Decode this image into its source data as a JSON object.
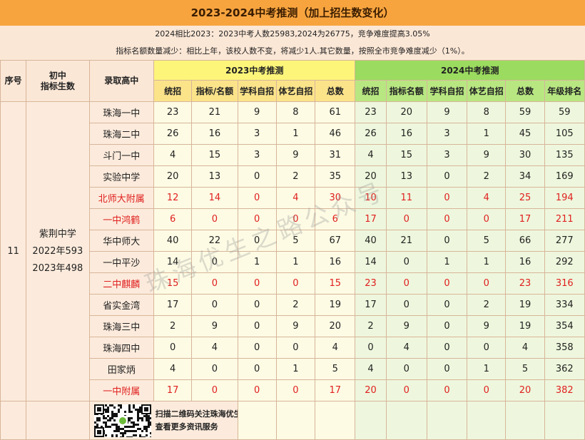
{
  "title": "2023-2024中考推测（加上招生数变化）",
  "notes": [
    "2024相比2023：2023中考人数25983,2024为26775，竞争难度提高3.05%",
    "指标名额数量减少：相比上年，该校人数不变，将减少1人.其它数量，按照全市竞争难度减少（1%）。"
  ],
  "headers": {
    "seq": "序号",
    "junior_line1": "初中",
    "junior_line2": "指标生数",
    "school": "录取高中",
    "group2023": "2023中考推测",
    "group2024": "2024中考推测",
    "sub2023": [
      "统招",
      "指标/名额",
      "学科自招",
      "体艺自招",
      "总数"
    ],
    "sub2024": [
      "统招",
      "指标名额",
      "学科自招",
      "体艺自招",
      "总数",
      "年级排名"
    ]
  },
  "left": {
    "seq": "11",
    "school_name": "紫荆中学",
    "line_2022": "2022年593",
    "line_2023": "2023年498"
  },
  "rows": [
    {
      "school": "珠海一中",
      "red": false,
      "d23": [
        "23",
        "21",
        "9",
        "8",
        "61"
      ],
      "d24": [
        "23",
        "20",
        "9",
        "8",
        "59",
        "59"
      ]
    },
    {
      "school": "珠海二中",
      "red": false,
      "d23": [
        "26",
        "16",
        "3",
        "1",
        "46"
      ],
      "d24": [
        "26",
        "16",
        "3",
        "1",
        "45",
        "105"
      ]
    },
    {
      "school": "斗门一中",
      "red": false,
      "d23": [
        "4",
        "15",
        "3",
        "9",
        "31"
      ],
      "d24": [
        "4",
        "15",
        "3",
        "9",
        "30",
        "135"
      ]
    },
    {
      "school": "实验中学",
      "red": false,
      "d23": [
        "20",
        "13",
        "0",
        "2",
        "35"
      ],
      "d24": [
        "20",
        "13",
        "0",
        "2",
        "34",
        "169"
      ]
    },
    {
      "school": "北师大附属",
      "red": true,
      "d23": [
        "12",
        "14",
        "0",
        "4",
        "30"
      ],
      "d24": [
        "10",
        "11",
        "0",
        "4",
        "25",
        "194"
      ]
    },
    {
      "school": "一中鸿鹤",
      "red": true,
      "d23": [
        "6",
        "0",
        "0",
        "0",
        "6"
      ],
      "d24": [
        "17",
        "0",
        "0",
        "0",
        "17",
        "211"
      ]
    },
    {
      "school": "华中师大",
      "red": false,
      "d23": [
        "40",
        "22",
        "0",
        "5",
        "67"
      ],
      "d24": [
        "40",
        "21",
        "0",
        "5",
        "66",
        "277"
      ]
    },
    {
      "school": "一中平沙",
      "red": false,
      "d23": [
        "14",
        "0",
        "1",
        "1",
        "16"
      ],
      "d24": [
        "14",
        "0",
        "1",
        "1",
        "16",
        "292"
      ]
    },
    {
      "school": "二中麒麟",
      "red": true,
      "d23": [
        "15",
        "0",
        "0",
        "0",
        "15"
      ],
      "d24": [
        "23",
        "0",
        "0",
        "0",
        "23",
        "316"
      ]
    },
    {
      "school": "省实金湾",
      "red": false,
      "d23": [
        "17",
        "0",
        "0",
        "2",
        "19"
      ],
      "d24": [
        "17",
        "0",
        "0",
        "2",
        "19",
        "334"
      ]
    },
    {
      "school": "珠海三中",
      "red": false,
      "d23": [
        "2",
        "9",
        "0",
        "9",
        "20"
      ],
      "d24": [
        "2",
        "9",
        "0",
        "9",
        "19",
        "354"
      ]
    },
    {
      "school": "珠海四中",
      "red": false,
      "d23": [
        "0",
        "4",
        "0",
        "0",
        "4"
      ],
      "d24": [
        "0",
        "4",
        "0",
        "0",
        "4",
        "358"
      ]
    },
    {
      "school": "田家炳",
      "red": false,
      "d23": [
        "4",
        "0",
        "0",
        "1",
        "5"
      ],
      "d24": [
        "4",
        "0",
        "0",
        "1",
        "5",
        "362"
      ]
    },
    {
      "school": "一中附属",
      "red": true,
      "d23": [
        "17",
        "0",
        "0",
        "0",
        "17"
      ],
      "d24": [
        "20",
        "0",
        "0",
        "0",
        "20",
        "382"
      ]
    }
  ],
  "footer": {
    "line1": "扫描二维码关注珠海优生之路",
    "line2": "查看更多资讯服务"
  },
  "watermark": "珠海优生之路公众号",
  "colors": {
    "title_bg": "#f7a43f",
    "header2023": "#fdf57a",
    "header2024": "#9bdb5f",
    "highlight_red": "#e02020"
  }
}
